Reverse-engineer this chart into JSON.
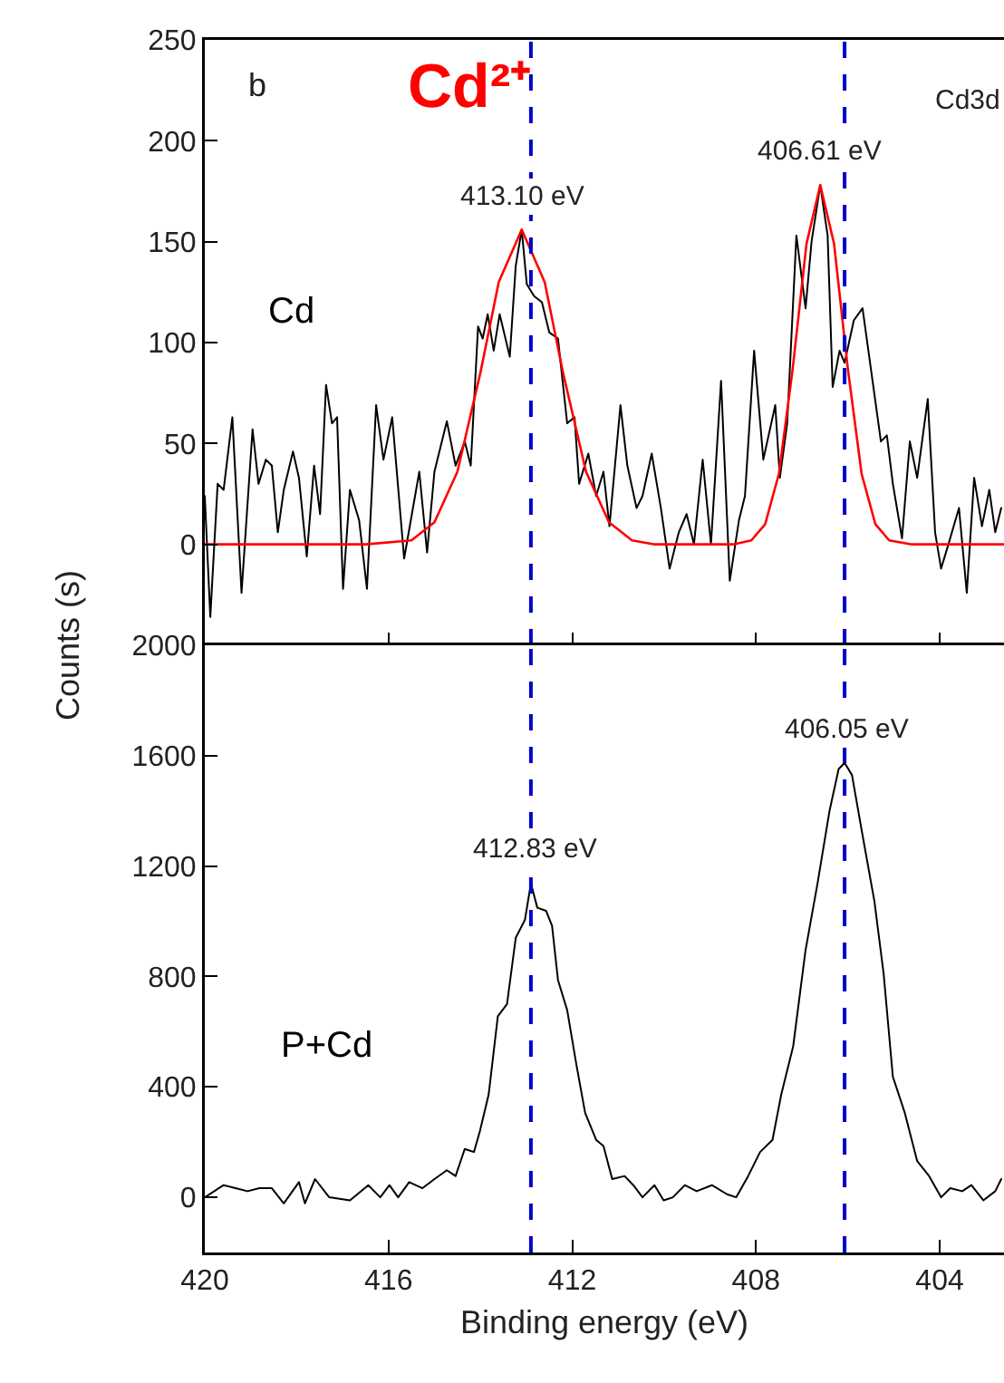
{
  "chart_data": [
    {
      "type": "line",
      "ylabel": "Counts (s)",
      "xlim": [
        420,
        402.6
      ],
      "xticks": [
        420,
        416,
        412,
        408,
        404
      ],
      "ylim": [
        -50,
        250
      ],
      "yticks": [
        0,
        50,
        100,
        150,
        200,
        250
      ],
      "tick_labels": "y",
      "annotations": [
        "b",
        "Cd²⁺",
        "Cd3d",
        {
          "text": "413.10 eV",
          "x": 413.1,
          "y": 156
        },
        {
          "text": "406.61 eV",
          "x": 406.61,
          "y": 178
        }
      ],
      "ref_lines": [
        {
          "axis": "x",
          "value": 412.9,
          "color": "#0000cc",
          "line_style": "dashed"
        },
        {
          "axis": "x",
          "value": 406.07,
          "color": "#0000cc",
          "line_style": "dashed"
        }
      ],
      "series": [
        {
          "name": "Cd",
          "color": "#000000",
          "x": [
            420.0,
            419.88,
            419.72,
            419.59,
            419.4,
            419.2,
            418.96,
            418.83,
            418.67,
            418.54,
            418.41,
            418.28,
            418.08,
            417.95,
            417.78,
            417.62,
            417.49,
            417.36,
            417.23,
            417.12,
            416.99,
            416.84,
            416.64,
            416.47,
            416.27,
            416.11,
            415.92,
            415.66,
            415.33,
            415.16,
            415.0,
            414.73,
            414.54,
            414.34,
            414.21,
            414.05,
            413.95,
            413.84,
            413.71,
            413.58,
            413.36,
            413.23,
            413.1,
            412.99,
            412.83,
            412.66,
            412.5,
            412.31,
            412.11,
            411.95,
            411.85,
            411.65,
            411.48,
            411.32,
            411.19,
            410.95,
            410.8,
            410.6,
            410.47,
            410.27,
            410.07,
            409.88,
            409.68,
            409.51,
            409.35,
            409.16,
            408.98,
            408.76,
            408.57,
            408.37,
            408.24,
            408.04,
            407.84,
            407.58,
            407.48,
            407.32,
            407.12,
            406.92,
            406.79,
            406.6,
            406.44,
            406.33,
            406.18,
            406.07,
            405.87,
            405.68,
            405.48,
            405.28,
            405.15,
            405.02,
            404.82,
            404.65,
            404.49,
            404.26,
            404.1,
            403.97,
            403.81,
            403.58,
            403.41,
            403.25,
            403.08,
            402.92,
            402.79,
            402.66
          ],
          "values": [
            24,
            -36,
            30,
            27,
            63,
            -24,
            57,
            30,
            42,
            39,
            6,
            27,
            46,
            33,
            -6,
            39,
            15,
            79,
            60,
            63,
            -22,
            27,
            12,
            -22,
            69,
            42,
            63,
            -7,
            36,
            -4,
            36,
            61,
            39,
            51,
            39,
            108,
            102,
            114,
            96,
            114,
            93,
            138,
            156,
            129,
            123,
            120,
            105,
            102,
            60,
            63,
            30,
            45,
            24,
            36,
            9,
            69,
            39,
            18,
            24,
            45,
            18,
            -12,
            6,
            15,
            0,
            42,
            0,
            81,
            -18,
            12,
            24,
            96,
            42,
            69,
            33,
            60,
            153,
            117,
            150,
            178,
            153,
            78,
            96,
            90,
            111,
            117,
            84,
            51,
            54,
            30,
            3,
            51,
            33,
            72,
            6,
            -12,
            0,
            18,
            -24,
            33,
            9,
            27,
            6,
            18
          ]
        },
        {
          "color": "#ff0000",
          "x": [
            420,
            416.5,
            415.5,
            415,
            414.5,
            414,
            413.6,
            413.1,
            412.6,
            412.2,
            411.7,
            411.2,
            410.7,
            410.2,
            408.5,
            408.1,
            407.8,
            407.5,
            407.2,
            406.9,
            406.6,
            406.3,
            406.0,
            405.7,
            405.4,
            405.1,
            404.6,
            402.6
          ],
          "values": [
            0,
            0,
            2,
            11,
            36,
            85,
            130,
            156,
            130,
            85,
            36,
            11,
            2,
            0,
            0,
            2,
            10,
            35,
            87,
            149,
            178,
            149,
            87,
            35,
            10,
            2,
            0,
            0
          ]
        }
      ]
    },
    {
      "type": "line",
      "xlabel": "Binding energy (eV)",
      "xlim": [
        420,
        402.6
      ],
      "xticks": [
        420,
        416,
        412,
        408,
        404
      ],
      "ylim": [
        -200,
        2000
      ],
      "yticks": [
        0,
        400,
        800,
        1200,
        1600,
        2000
      ],
      "annotations": [
        {
          "text": "412.83 eV",
          "x": 412.83,
          "y": 1137
        },
        {
          "text": "406.05 eV",
          "x": 406.05,
          "y": 1574
        }
      ],
      "ref_lines": [
        {
          "axis": "x",
          "value": 412.9,
          "color": "#0000cc",
          "line_style": "dashed"
        },
        {
          "axis": "x",
          "value": 406.07,
          "color": "#0000cc",
          "line_style": "dashed"
        }
      ],
      "series": [
        {
          "name": "P+Cd",
          "color": "#000000",
          "x": [
            420.0,
            419.59,
            419.33,
            419.07,
            418.81,
            418.54,
            418.28,
            417.95,
            417.82,
            417.6,
            417.29,
            416.84,
            416.44,
            416.18,
            415.98,
            415.79,
            415.55,
            415.26,
            415.0,
            414.73,
            414.54,
            414.34,
            414.14,
            414.01,
            413.82,
            413.62,
            413.42,
            413.23,
            413.03,
            412.9,
            412.76,
            412.57,
            412.44,
            412.31,
            412.11,
            411.91,
            411.72,
            411.48,
            411.32,
            411.13,
            410.86,
            410.67,
            410.47,
            410.21,
            410.01,
            409.81,
            409.55,
            409.29,
            408.96,
            408.63,
            408.43,
            408.17,
            407.91,
            407.64,
            407.45,
            407.19,
            406.92,
            406.66,
            406.4,
            406.2,
            406.07,
            405.91,
            405.68,
            405.42,
            405.22,
            405.02,
            404.76,
            404.49,
            404.23,
            403.97,
            403.77,
            403.51,
            403.31,
            403.05,
            402.79,
            402.66
          ],
          "values": [
            0,
            44,
            33,
            22,
            33,
            33,
            -22,
            55,
            -22,
            66,
            0,
            -11,
            44,
            0,
            44,
            0,
            55,
            33,
            66,
            98,
            77,
            175,
            164,
            240,
            372,
            656,
            700,
            940,
            1005,
            1137,
            1049,
            1038,
            984,
            787,
            678,
            481,
            306,
            208,
            186,
            66,
            77,
            44,
            0,
            44,
            -11,
            0,
            44,
            22,
            44,
            11,
            0,
            77,
            164,
            208,
            372,
            547,
            896,
            1137,
            1399,
            1552,
            1574,
            1530,
            1312,
            1071,
            809,
            437,
            306,
            131,
            77,
            0,
            33,
            22,
            44,
            -11,
            22,
            66
          ]
        }
      ]
    }
  ]
}
